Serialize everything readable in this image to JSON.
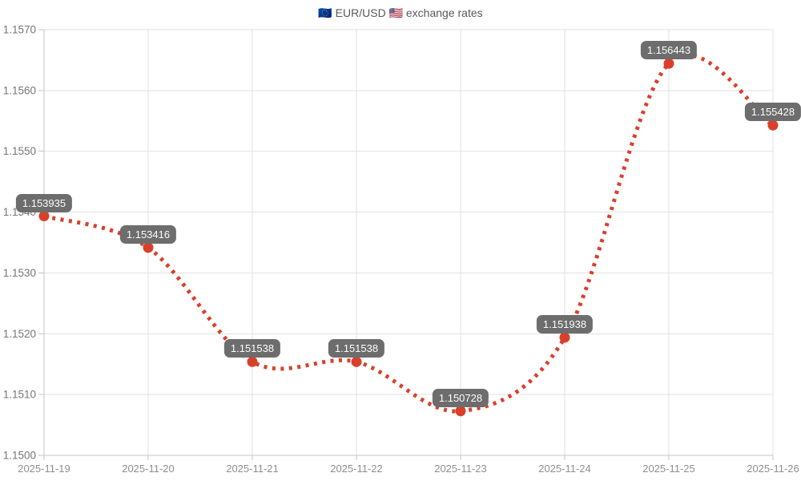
{
  "chart_data": {
    "type": "line",
    "title": "🇪🇺 EUR/USD 🇺🇸 exchange rates",
    "xlabel": "",
    "ylabel": "",
    "x": [
      "2025-11-19",
      "2025-11-20",
      "2025-11-21",
      "2025-11-22",
      "2025-11-23",
      "2025-11-24",
      "2025-11-25",
      "2025-11-26"
    ],
    "series": [
      {
        "name": "EUR/USD",
        "values": [
          1.153935,
          1.153416,
          1.151538,
          1.151538,
          1.150728,
          1.151938,
          1.156443,
          1.155428
        ]
      }
    ],
    "point_labels": [
      "1.153935",
      "1.153416",
      "1.151538",
      "1.151538",
      "1.150728",
      "1.151938",
      "1.156443",
      "1.155428"
    ],
    "ylim": [
      1.15,
      1.157
    ],
    "ytick_step": 0.001,
    "ytick_labels": [
      "1.1500",
      "1.1510",
      "1.1520",
      "1.1530",
      "1.1540",
      "1.1550",
      "1.1560",
      "1.1570"
    ],
    "grid": true,
    "legend": "none",
    "line_style": "dotted",
    "smooth": true,
    "colors": {
      "line": "#d9402b",
      "point": "#d9402b",
      "label_bg": "#6d6d6d",
      "label_text": "#fdfdfd",
      "grid": "#e2e2e2",
      "axis": "#c6c6c6",
      "title_text": "#595959",
      "ytick_text": "#767676",
      "xtick_text": "#8f8f8f"
    }
  }
}
